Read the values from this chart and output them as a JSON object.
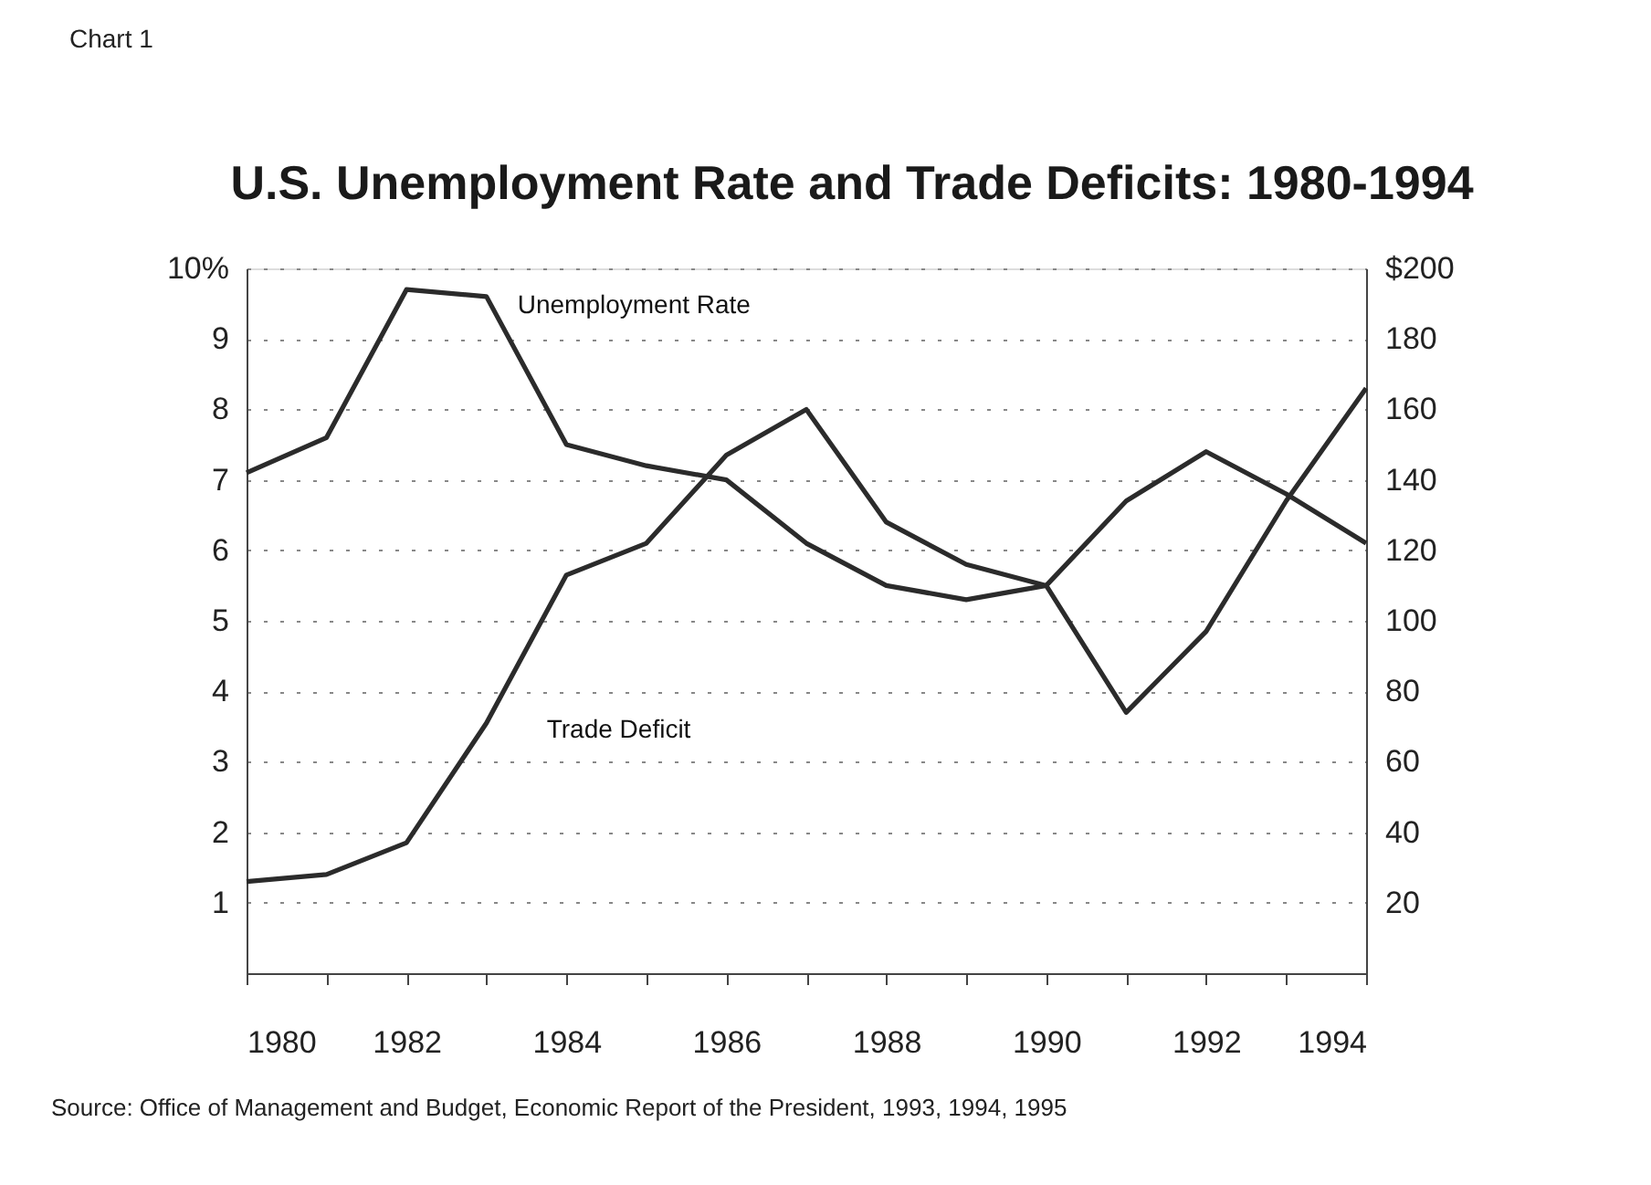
{
  "chart_data": {
    "type": "line",
    "title": "U.S. Unemployment Rate and Trade Deficits: 1980-1994",
    "annotations": [
      "Chart 1",
      "Source: Office of Management and Budget, Economic Report of the President, 1993, 1994, 1995"
    ],
    "x": [
      1980,
      1981,
      1982,
      1983,
      1984,
      1985,
      1986,
      1987,
      1988,
      1989,
      1990,
      1991,
      1992,
      1993,
      1994
    ],
    "series": [
      {
        "name": "Unemployment Rate",
        "color": "#2b2b2b",
        "axis": "y",
        "values": [
          7.1,
          7.6,
          9.7,
          9.6,
          7.5,
          7.2,
          7.0,
          6.1,
          5.5,
          5.3,
          5.5,
          6.7,
          7.4,
          6.8,
          6.1
        ]
      },
      {
        "name": "Trade Deficit",
        "color": "#2b2b2b",
        "axis": "y2",
        "values": [
          26,
          28,
          37,
          71,
          113,
          122,
          147,
          160,
          128,
          116,
          110,
          74,
          97,
          134,
          166
        ]
      }
    ],
    "xlim": [
      1980,
      1994
    ],
    "xticks": [
      1980,
      {
        "value": 1981,
        "label": null
      },
      1982,
      {
        "value": 1983,
        "label": null
      },
      1984,
      {
        "value": 1985,
        "label": null
      },
      1986,
      {
        "value": 1987,
        "label": null
      },
      1988,
      {
        "value": 1989,
        "label": null
      },
      1990,
      {
        "value": 1991,
        "label": null
      },
      1992,
      {
        "value": 1993,
        "label": null
      },
      1994
    ],
    "ylim": [
      0,
      10
    ],
    "yticks": [
      1,
      2,
      3,
      4,
      5,
      6,
      7,
      8,
      9,
      {
        "value": 10,
        "label": "10%"
      }
    ],
    "y2lim": [
      0,
      200
    ],
    "y2ticks": [
      20,
      40,
      60,
      80,
      100,
      120,
      140,
      160,
      180,
      {
        "value": 200,
        "label": "$200"
      }
    ],
    "grid": "y",
    "legend": false,
    "marker": "none",
    "line_style": "solid"
  }
}
